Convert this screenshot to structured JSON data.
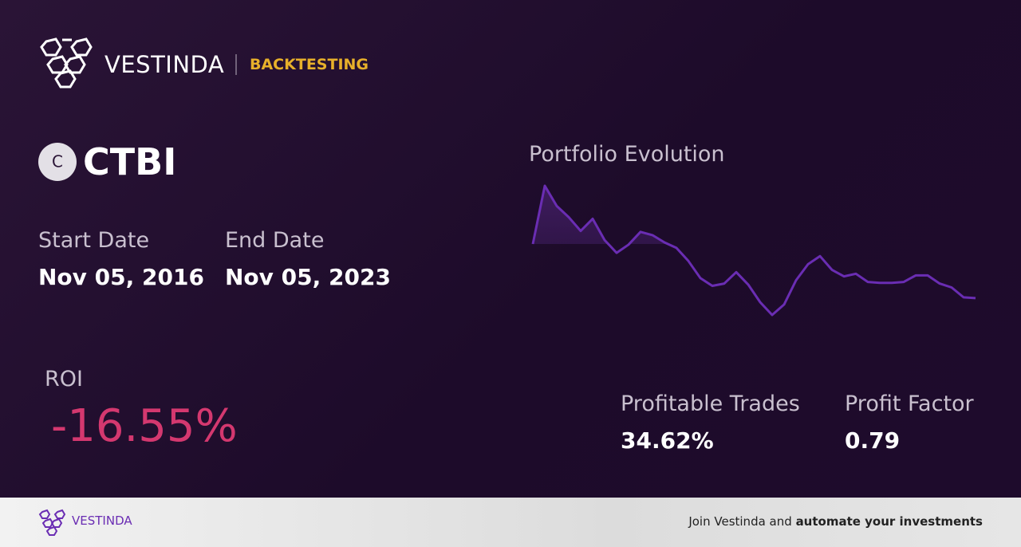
{
  "header": {
    "brand": "VESTINDA",
    "section": "BACKTESTING"
  },
  "ticker": {
    "icon_letter": "C",
    "symbol": "CTBI"
  },
  "dates": {
    "start_label": "Start Date",
    "start_value": "Nov 05, 2016",
    "end_label": "End Date",
    "end_value": "Nov 05, 2023"
  },
  "chart_data": {
    "type": "line",
    "title": "Portfolio Evolution",
    "color": "#6a2db3",
    "values": [
      100,
      117.8,
      111.6,
      108.2,
      104.0,
      107.7,
      101.2,
      97.3,
      99.8,
      103.7,
      102.7,
      100.5,
      98.8,
      94.8,
      89.6,
      87.2,
      87.9,
      91.4,
      87.6,
      82.2,
      78.3,
      81.5,
      88.9,
      93.8,
      96.3,
      92.1,
      90.1,
      90.9,
      88.4,
      88.1,
      88.1,
      88.4,
      90.4,
      90.4,
      87.9,
      86.7,
      83.7,
      83.45
    ]
  },
  "metrics": {
    "roi_label": "ROI",
    "roi_value": "-16.55%",
    "profitable_label": "Profitable Trades",
    "profitable_value": "34.62%",
    "factor_label": "Profit Factor",
    "factor_value": "0.79"
  },
  "footer": {
    "brand": "VESTINDA",
    "cta_plain": "Join Vestinda and",
    "cta_bold": "automate your investments"
  }
}
